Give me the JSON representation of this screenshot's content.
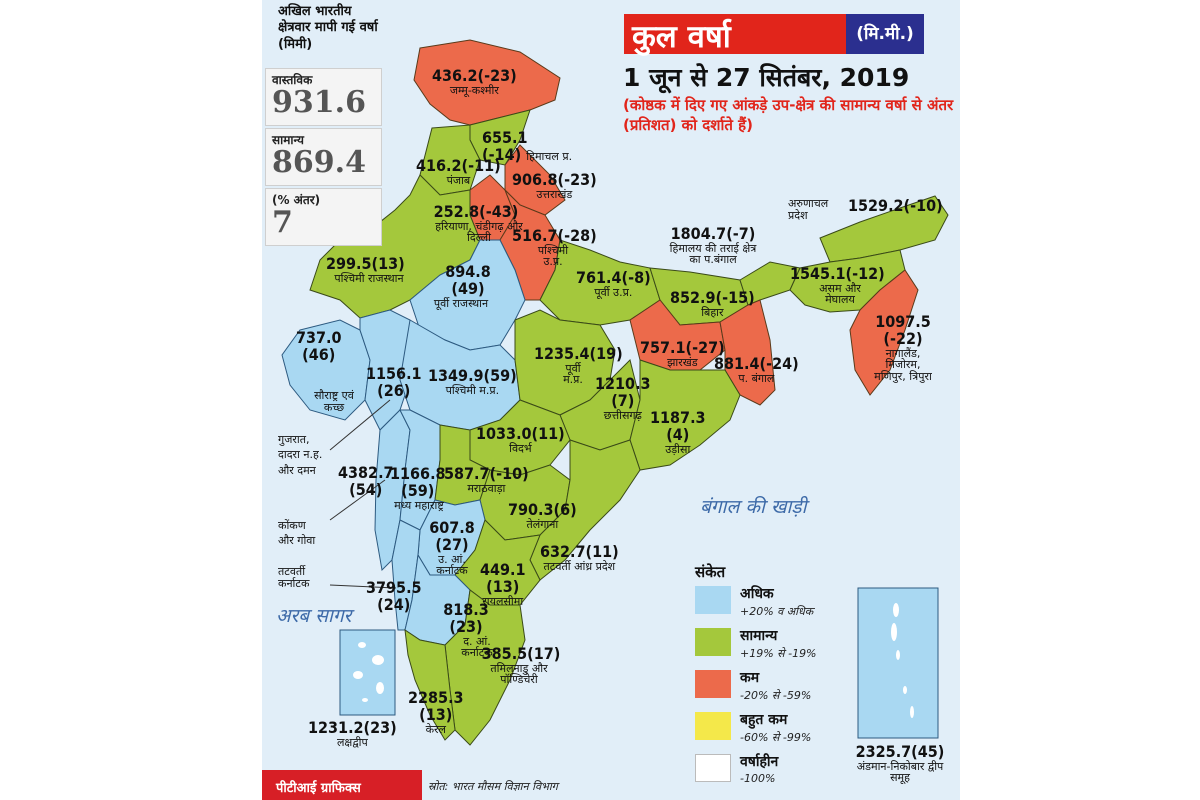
{
  "title": "कुल वर्षा",
  "unit": "(मि.मी.)",
  "date_range": "1 जून से 27 सितंबर, 2019",
  "note": "(कोष्ठक में दिए गए आंकड़े उप-क्षेत्र की सामान्य वर्षा से अंतर (प्रतिशत) को दर्शाते हैं)",
  "summary": {
    "heading": "अखिल भारतीय क्षेत्रवार मापी गई वर्षा (मिमी)",
    "actual_label": "वास्तविक",
    "actual_value": "931.6",
    "normal_label": "सामान्य",
    "normal_value": "869.4",
    "diff_label": "(% अंतर)",
    "diff_value": "7"
  },
  "colors": {
    "excess": "#a9d8f2",
    "normal": "#a4c83c",
    "deficient": "#ec6a4b",
    "large_deficient": "#f4e84a",
    "no_rain": "#ffffff",
    "sea": "#e1eef8",
    "title_red": "#e1251b",
    "title_blue": "#2b2f8f"
  },
  "seas": {
    "bay": "बंगाल की खाड़ी",
    "arabian": "अरब सागर"
  },
  "regions": [
    {
      "id": "jk",
      "value": "436.2(-23)",
      "name": "जम्मू-कश्मीर",
      "category": "deficient"
    },
    {
      "id": "hp",
      "value": "655.1",
      "value2": "(-14)",
      "name": "हिमाचल प्र.",
      "category": "normal"
    },
    {
      "id": "punjab",
      "value": "416.2(-11)",
      "name": "पंजाब",
      "category": "normal"
    },
    {
      "id": "uk",
      "value": "906.8(-23)",
      "name": "उत्तराखंड",
      "category": "deficient"
    },
    {
      "id": "haryana",
      "value": "252.8(-43)",
      "name": "हरियाणा, चंडीगढ़ और दिल्ली",
      "category": "deficient"
    },
    {
      "id": "wup",
      "value": "516.7(-28)",
      "name": "पश्चिमी उ.प्र.",
      "category": "deficient"
    },
    {
      "id": "wraj",
      "value": "299.5(13)",
      "name": "पश्चिमी राजस्थान",
      "category": "normal"
    },
    {
      "id": "eraj",
      "value": "894.8",
      "value2": "(49)",
      "name": "पूर्वी राजस्थान",
      "category": "excess"
    },
    {
      "id": "eup",
      "value": "761.4(-8)",
      "name": "पूर्वी उ.प्र.",
      "category": "normal"
    },
    {
      "id": "shwb",
      "value": "1804.7(-7)",
      "name": "हिमालय की तराई क्षेत्र का प.बंगाल",
      "category": "normal"
    },
    {
      "id": "bihar",
      "value": "852.9(-15)",
      "name": "बिहार",
      "category": "normal"
    },
    {
      "id": "arunachal",
      "value": "1529.2(-10)",
      "name": "अरुणाचल प्रदेश",
      "category": "normal"
    },
    {
      "id": "assam",
      "value": "1545.1(-12)",
      "name": "असम और मेघालय",
      "category": "normal"
    },
    {
      "id": "nmmt",
      "value": "1097.5",
      "value2": "(-22)",
      "name": "नागालैंड, मिजोरम, मणिपुर, त्रिपुरा",
      "category": "deficient"
    },
    {
      "id": "saurashtra",
      "value": "737.0",
      "value2": "(46)",
      "name": "सौराष्ट्र एवं कच्छ",
      "category": "excess"
    },
    {
      "id": "gujarat",
      "value": "1156.1",
      "value2": "(26)",
      "name": "गुजरात, दादरा न.ह. और दमन",
      "category": "excess"
    },
    {
      "id": "wmp",
      "value": "1349.9(59)",
      "name": "पश्चिमी म.प्र.",
      "category": "excess"
    },
    {
      "id": "emp",
      "value": "1235.4(19)",
      "name": "पूर्वी म.प्र.",
      "category": "normal"
    },
    {
      "id": "jharkhand",
      "value": "757.1(-27)",
      "name": "झारखंड",
      "category": "deficient"
    },
    {
      "id": "gwb",
      "value": "881.4(-24)",
      "name": "प. बंगाल",
      "category": "deficient"
    },
    {
      "id": "chhattisgarh",
      "value": "1210.3",
      "value2": "(7)",
      "name": "छत्तीसगढ़",
      "category": "normal"
    },
    {
      "id": "odisha",
      "value": "1187.3",
      "value2": "(4)",
      "name": "उड़ीसा",
      "category": "normal"
    },
    {
      "id": "vidarbha",
      "value": "1033.0(11)",
      "name": "विदर्भ",
      "category": "normal"
    },
    {
      "id": "konkan",
      "value": "4382.7",
      "value2": "(54)",
      "name": "कोंकण और गोवा",
      "category": "excess"
    },
    {
      "id": "mmh",
      "value": "1166.8",
      "value2": "(59)",
      "name": "मध्य महाराष्ट्र",
      "category": "excess"
    },
    {
      "id": "marathwada",
      "value": "587.7(-10)",
      "name": "मराठवाड़ा",
      "category": "normal"
    },
    {
      "id": "telangana",
      "value": "790.3(6)",
      "name": "तेलंगाना",
      "category": "normal"
    },
    {
      "id": "nik",
      "value": "607.8",
      "value2": "(27)",
      "name": "उ. आं. कर्नाटक",
      "category": "excess"
    },
    {
      "id": "cap",
      "value": "632.7(11)",
      "name": "तटवर्ती आंध्र प्रदेश",
      "category": "normal"
    },
    {
      "id": "ck",
      "value": "3795.5",
      "value2": "(24)",
      "name": "तटवर्ती कर्नाटक",
      "category": "excess"
    },
    {
      "id": "rayalaseema",
      "value": "449.1",
      "value2": "(13)",
      "name": "रायलसीमा",
      "category": "normal"
    },
    {
      "id": "sik",
      "value": "818.3",
      "value2": "(23)",
      "name": "द. आं. कर्नाटक",
      "category": "excess"
    },
    {
      "id": "tn",
      "value": "385.5(17)",
      "name": "तमिलनाडु और पॉण्डिचेरी",
      "category": "normal"
    },
    {
      "id": "kerala",
      "value": "2285.3",
      "value2": "(13)",
      "name": "केरल",
      "category": "normal"
    },
    {
      "id": "lakshadweep",
      "value": "1231.2(23)",
      "name": "लक्षद्वीप",
      "category": "excess"
    },
    {
      "id": "andaman",
      "value": "2325.7(45)",
      "name": "अंडमान-निकोबार द्वीप समूह",
      "category": "excess"
    }
  ],
  "legend": {
    "title": "संकेत",
    "items": [
      {
        "category": "excess",
        "label": "अधिक",
        "range": "+20% व अधिक"
      },
      {
        "category": "normal",
        "label": "सामान्य",
        "range": "+19% से -19%"
      },
      {
        "category": "deficient",
        "label": "कम",
        "range": "-20% से -59%"
      },
      {
        "category": "large_deficient",
        "label": "बहुत कम",
        "range": "-60% से -99%"
      },
      {
        "category": "no_rain",
        "label": "वर्षाहीन",
        "range": "-100%"
      }
    ]
  },
  "credit": "पीटीआई ग्राफिक्स",
  "source": "स्रोत: भारत मौसम विज्ञान विभाग"
}
